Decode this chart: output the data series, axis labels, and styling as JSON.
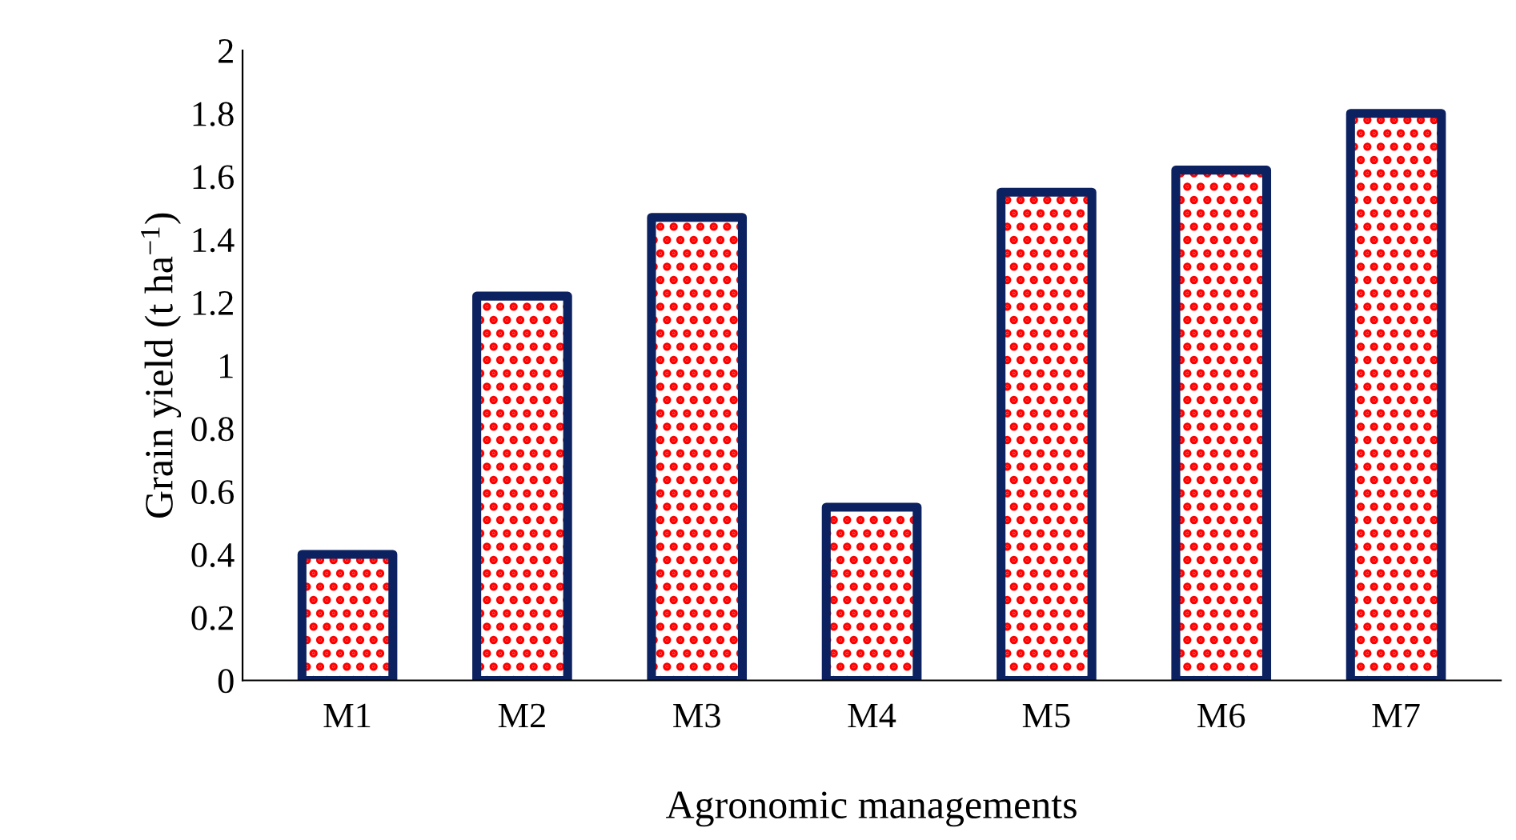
{
  "chart_data": {
    "type": "bar",
    "xlabel": "Agronomic managements",
    "ylabel": "Grain yield (t ha$^{−1}$)",
    "categories": [
      "M1",
      "M2",
      "M3",
      "M4",
      "M5",
      "M6",
      "M7"
    ],
    "values": [
      0.4,
      1.22,
      1.47,
      0.55,
      1.55,
      1.62,
      1.8
    ],
    "color": "#0b2160",
    "ylim": [
      0,
      2
    ],
    "yticks": [
      0,
      0.2,
      0.4,
      0.6,
      0.8,
      1,
      1.2,
      1.4,
      1.6,
      1.8,
      2
    ],
    "grid": false
  }
}
